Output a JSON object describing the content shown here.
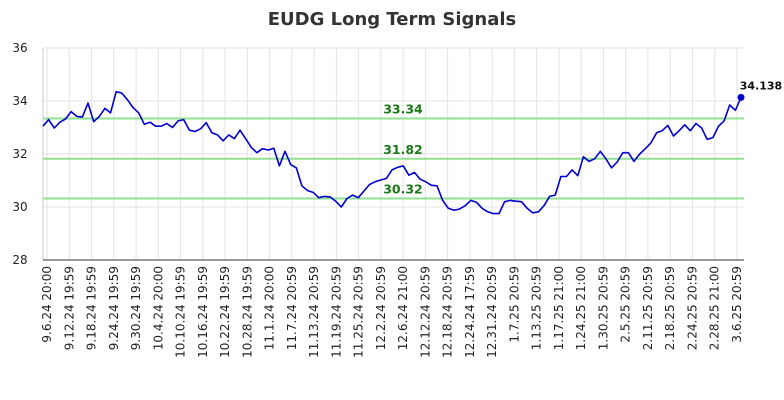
{
  "chart_data": {
    "type": "line",
    "title": "EUDG Long Term Signals",
    "xlabel": "",
    "ylabel": "",
    "ylim": [
      28,
      36
    ],
    "yticks": [
      28,
      30,
      32,
      34,
      36
    ],
    "grid": true,
    "xtick_labels": [
      "9.6.24 20:00",
      "9.12.24 19:59",
      "9.18.24 19:59",
      "9.24.24 19:59",
      "9.30.24 19:59",
      "10.4.24 20:00",
      "10.10.24 19:59",
      "10.16.24 19:59",
      "10.22.24 19:59",
      "10.28.24 19:59",
      "11.1.24 20:00",
      "11.7.24 20:59",
      "11.13.24 20:59",
      "11.19.24 20:59",
      "11.25.24 20:59",
      "12.2.24 20:59",
      "12.6.24 21:00",
      "12.12.24 20:59",
      "12.18.24 20:59",
      "12.24.24 17:59",
      "12.31.24 20:59",
      "1.7.25 20:59",
      "1.13.25 20:59",
      "1.17.25 21:00",
      "1.24.25 21:00",
      "1.30.25 20:59",
      "2.5.25 20:59",
      "2.11.25 20:59",
      "2.18.25 20:59",
      "2.24.25 20:59",
      "2.28.25 21:00",
      "3.6.25 20:59"
    ],
    "signal_lines": [
      {
        "value": 33.34,
        "label": "33.34"
      },
      {
        "value": 31.82,
        "label": "31.82"
      },
      {
        "value": 30.32,
        "label": "30.32"
      }
    ],
    "last_value_label": "34.138",
    "series": [
      {
        "values": [
          33.05,
          33.3,
          32.98,
          33.2,
          33.32,
          33.6,
          33.42,
          33.4,
          33.92,
          33.22,
          33.42,
          33.72,
          33.55,
          34.35,
          34.3,
          34.05,
          33.75,
          33.55,
          33.12,
          33.2,
          33.05,
          33.05,
          33.15,
          33.0,
          33.25,
          33.3,
          32.9,
          32.85,
          32.95,
          33.18,
          32.8,
          32.72,
          32.5,
          32.72,
          32.58,
          32.9,
          32.58,
          32.25,
          32.05,
          32.2,
          32.15,
          32.22,
          31.55,
          32.1,
          31.6,
          31.48,
          30.8,
          30.62,
          30.55,
          30.35,
          30.4,
          30.38,
          30.22,
          30.0,
          30.32,
          30.45,
          30.35,
          30.6,
          30.85,
          30.95,
          31.02,
          31.08,
          31.4,
          31.5,
          31.55,
          31.2,
          31.3,
          31.05,
          30.95,
          30.82,
          30.8,
          30.25,
          29.95,
          29.88,
          29.92,
          30.05,
          30.25,
          30.18,
          29.95,
          29.82,
          29.75,
          29.75,
          30.2,
          30.25,
          30.22,
          30.2,
          29.95,
          29.78,
          29.82,
          30.05,
          30.4,
          30.45,
          31.15,
          31.15,
          31.4,
          31.18,
          31.9,
          31.72,
          31.82,
          32.1,
          31.82,
          31.48,
          31.7,
          32.05,
          32.05,
          31.72,
          32.0,
          32.2,
          32.42,
          32.8,
          32.88,
          33.08,
          32.68,
          32.88,
          33.1,
          32.88,
          33.15,
          32.98,
          32.55,
          32.62,
          33.05,
          33.25,
          33.85,
          33.65,
          34.138
        ]
      }
    ]
  }
}
